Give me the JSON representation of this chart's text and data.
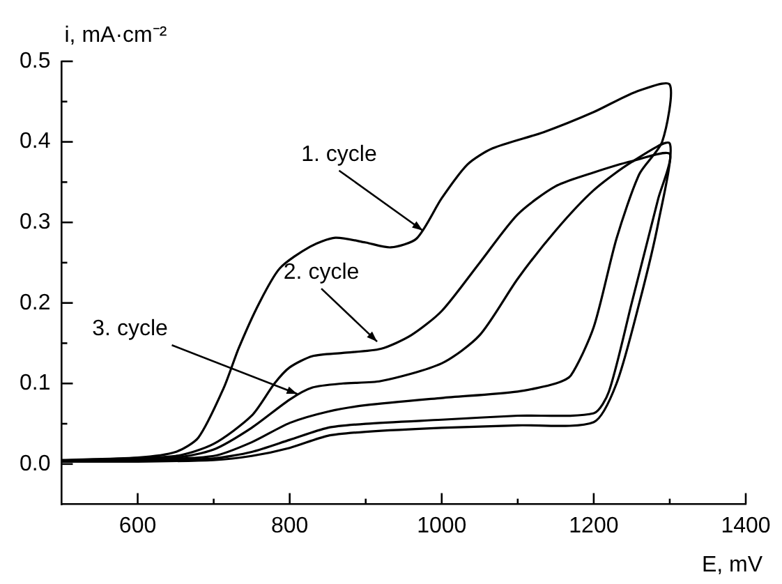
{
  "chart_data": {
    "type": "line",
    "xlabel": "E, mV",
    "ylabel": "i, mA·cm⁻²",
    "xlim": [
      500,
      1400
    ],
    "xticks": [
      600,
      {
        "value": 700,
        "label": null
      },
      800,
      {
        "value": 900,
        "label": null
      },
      1000,
      {
        "value": 1100,
        "label": null
      },
      1200,
      {
        "value": 1300,
        "label": null
      },
      1400
    ],
    "ylim": [
      -0.05,
      0.5
    ],
    "yticks": [
      {
        "value": 0,
        "label": "0.0"
      },
      {
        "value": 0.05,
        "label": null
      },
      0.1,
      {
        "value": 0.15,
        "label": null
      },
      0.2,
      {
        "value": 0.25,
        "label": null
      },
      0.3,
      {
        "value": 0.35,
        "label": null
      },
      0.4,
      {
        "value": 0.45,
        "label": null
      },
      0.5
    ],
    "grid": false,
    "legend": false,
    "marker": "none",
    "line_style": "solid",
    "series": [
      {
        "color": "#000000",
        "x": [
          500,
          600,
          650,
          680,
          713,
          733,
          760,
          787,
          827,
          860,
          900,
          933,
          967,
          1000,
          1034,
          1067,
          1134,
          1200,
          1255,
          1300,
          1290,
          1260,
          1230,
          1200,
          1170,
          1150,
          1100,
          1000,
          900,
          850,
          800,
          750,
          700,
          600,
          500
        ],
        "values": [
          0.005,
          0.008,
          0.015,
          0.033,
          0.094,
          0.144,
          0.2,
          0.243,
          0.27,
          0.281,
          0.275,
          0.269,
          0.28,
          0.33,
          0.372,
          0.392,
          0.412,
          0.437,
          0.462,
          0.471,
          0.4,
          0.36,
          0.28,
          0.17,
          0.11,
          0.1,
          0.09,
          0.082,
          0.073,
          0.065,
          0.051,
          0.027,
          0.01,
          0.005,
          0.004
        ]
      },
      {
        "color": "#000000",
        "x": [
          500,
          650,
          700,
          750,
          780,
          800,
          830,
          870,
          920,
          960,
          1000,
          1050,
          1100,
          1150,
          1200,
          1250,
          1300,
          1285,
          1250,
          1220,
          1200,
          1100,
          1000,
          900,
          850,
          800,
          750,
          700,
          600,
          500
        ],
        "values": [
          0.004,
          0.01,
          0.025,
          0.06,
          0.1,
          0.12,
          0.134,
          0.138,
          0.143,
          0.16,
          0.19,
          0.25,
          0.31,
          0.345,
          0.362,
          0.376,
          0.385,
          0.33,
          0.2,
          0.09,
          0.063,
          0.06,
          0.055,
          0.05,
          0.045,
          0.03,
          0.015,
          0.007,
          0.004,
          0.003
        ]
      },
      {
        "color": "#000000",
        "x": [
          500,
          650,
          700,
          750,
          800,
          830,
          870,
          920,
          1000,
          1050,
          1100,
          1150,
          1200,
          1250,
          1300,
          1285,
          1260,
          1230,
          1200,
          1100,
          1000,
          900,
          850,
          800,
          750,
          700,
          600,
          500
        ],
        "values": [
          0.004,
          0.008,
          0.018,
          0.045,
          0.08,
          0.095,
          0.1,
          0.103,
          0.125,
          0.16,
          0.23,
          0.29,
          0.34,
          0.375,
          0.398,
          0.3,
          0.2,
          0.1,
          0.052,
          0.048,
          0.045,
          0.04,
          0.035,
          0.02,
          0.01,
          0.005,
          0.003,
          0.003
        ]
      }
    ],
    "annotations": [
      {
        "text": "1. cycle",
        "x": 975,
        "y": 0.29
      },
      {
        "text": "2. cycle",
        "x": 915,
        "y": 0.152
      },
      {
        "text": "3. cycle",
        "x": 810,
        "y": 0.087
      }
    ]
  }
}
